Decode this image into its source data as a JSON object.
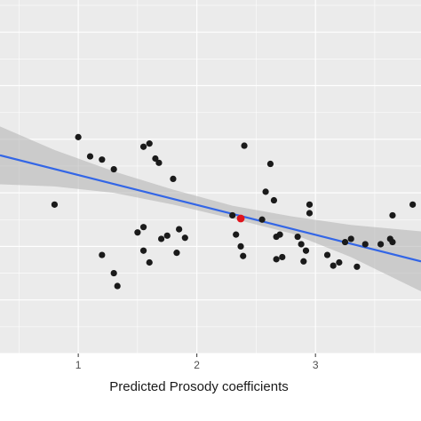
{
  "chart_data": {
    "type": "scatter",
    "title": "",
    "xlabel": "Predicted Prosody coefficients",
    "ylabel": "",
    "xlim": [
      0.34,
      3.89
    ],
    "ylim": [
      -0.5,
      2.8
    ],
    "x_ticks": [
      1,
      2,
      3
    ],
    "x_tick_labels": [
      "1",
      "2",
      "3"
    ],
    "grid": true,
    "background": "#ebebeb",
    "colors": {
      "point": "#1a1a1a",
      "highlight": "#e0141c",
      "fit_line": "#3366e6",
      "confidence_band": "#b5b5b5"
    },
    "points": [
      {
        "x": 0.8,
        "y": 0.89
      },
      {
        "x": 1.0,
        "y": 1.52
      },
      {
        "x": 1.1,
        "y": 1.34
      },
      {
        "x": 1.2,
        "y": 1.31
      },
      {
        "x": 1.3,
        "y": 1.22
      },
      {
        "x": 1.2,
        "y": 0.42
      },
      {
        "x": 1.3,
        "y": 0.25
      },
      {
        "x": 1.33,
        "y": 0.13
      },
      {
        "x": 1.55,
        "y": 1.43
      },
      {
        "x": 1.6,
        "y": 1.46
      },
      {
        "x": 1.65,
        "y": 1.32
      },
      {
        "x": 1.68,
        "y": 1.28
      },
      {
        "x": 1.8,
        "y": 1.13
      },
      {
        "x": 1.55,
        "y": 0.68
      },
      {
        "x": 1.5,
        "y": 0.63
      },
      {
        "x": 1.55,
        "y": 0.46
      },
      {
        "x": 1.6,
        "y": 0.35
      },
      {
        "x": 1.75,
        "y": 0.6
      },
      {
        "x": 1.7,
        "y": 0.57
      },
      {
        "x": 1.85,
        "y": 0.66
      },
      {
        "x": 1.9,
        "y": 0.58
      },
      {
        "x": 1.83,
        "y": 0.44
      },
      {
        "x": 2.3,
        "y": 0.79
      },
      {
        "x": 2.33,
        "y": 0.61
      },
      {
        "x": 2.37,
        "y": 0.5
      },
      {
        "x": 2.39,
        "y": 0.41
      },
      {
        "x": 2.4,
        "y": 1.44
      },
      {
        "x": 2.55,
        "y": 0.75
      },
      {
        "x": 2.58,
        "y": 1.01
      },
      {
        "x": 2.62,
        "y": 1.27
      },
      {
        "x": 2.65,
        "y": 0.93
      },
      {
        "x": 2.67,
        "y": 0.59
      },
      {
        "x": 2.7,
        "y": 0.61
      },
      {
        "x": 2.67,
        "y": 0.38
      },
      {
        "x": 2.72,
        "y": 0.4
      },
      {
        "x": 2.85,
        "y": 0.59
      },
      {
        "x": 2.88,
        "y": 0.52
      },
      {
        "x": 2.92,
        "y": 0.46
      },
      {
        "x": 2.95,
        "y": 0.81
      },
      {
        "x": 2.95,
        "y": 0.89
      },
      {
        "x": 2.9,
        "y": 0.36
      },
      {
        "x": 3.1,
        "y": 0.42
      },
      {
        "x": 3.15,
        "y": 0.32
      },
      {
        "x": 3.2,
        "y": 0.35
      },
      {
        "x": 3.25,
        "y": 0.54
      },
      {
        "x": 3.3,
        "y": 0.57
      },
      {
        "x": 3.35,
        "y": 0.31
      },
      {
        "x": 3.42,
        "y": 0.52
      },
      {
        "x": 3.55,
        "y": 0.52
      },
      {
        "x": 3.63,
        "y": 0.57
      },
      {
        "x": 3.65,
        "y": 0.54
      },
      {
        "x": 3.65,
        "y": 0.79
      },
      {
        "x": 3.82,
        "y": 0.89
      }
    ],
    "highlight_point": {
      "x": 2.37,
      "y": 0.76
    },
    "fit_line": {
      "x": [
        0.34,
        3.89
      ],
      "y": [
        1.35,
        0.36
      ]
    },
    "confidence_band": {
      "x": [
        0.34,
        0.8,
        1.3,
        1.8,
        2.3,
        2.8,
        3.3,
        3.89
      ],
      "upper": [
        1.62,
        1.4,
        1.2,
        1.03,
        0.88,
        0.78,
        0.7,
        0.64
      ],
      "lower": [
        1.08,
        1.06,
        1.0,
        0.89,
        0.76,
        0.62,
        0.4,
        0.08
      ]
    }
  }
}
